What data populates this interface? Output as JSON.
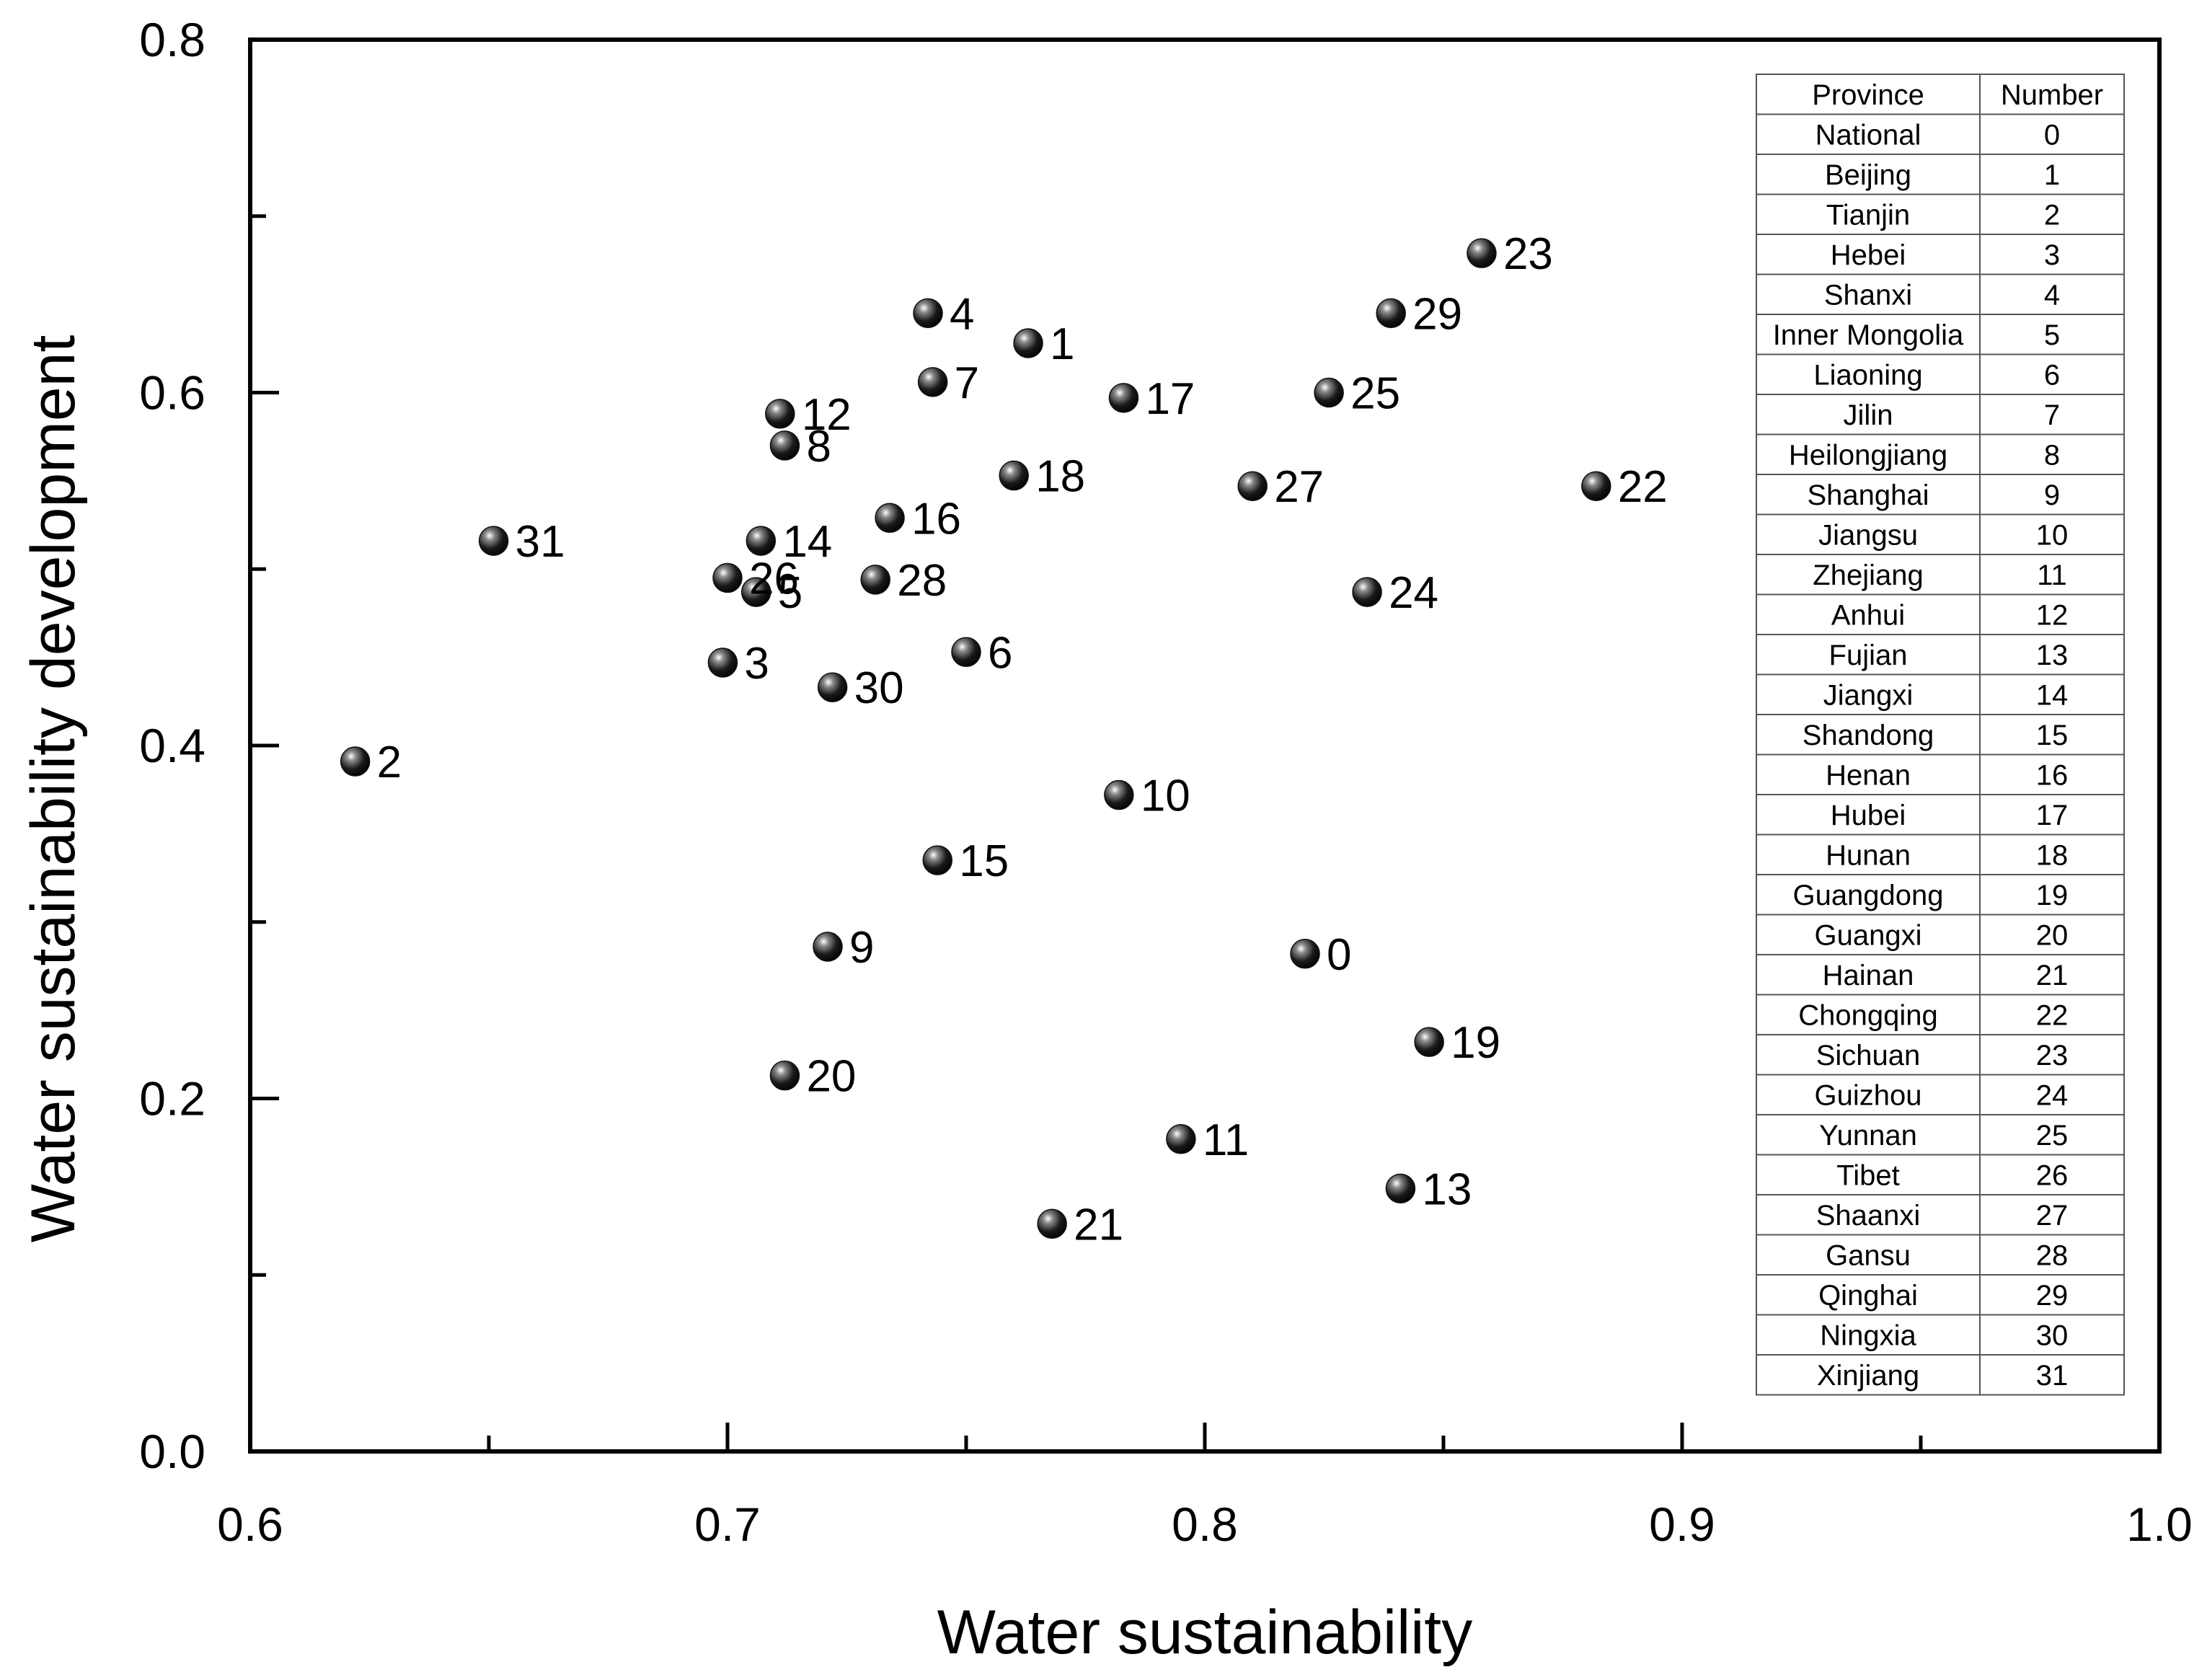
{
  "chart_data": {
    "type": "scatter",
    "title": "",
    "xlabel": "Water sustainability",
    "ylabel": "Water sustainability development",
    "xlim": [
      0.6,
      1.0
    ],
    "ylim": [
      0.0,
      0.8
    ],
    "x_major_ticks": [
      0.6,
      0.7,
      0.8,
      0.9,
      1.0
    ],
    "y_major_ticks": [
      0.0,
      0.2,
      0.4,
      0.6,
      0.8
    ],
    "x_tick_labels": [
      "0.6",
      "0.7",
      "0.8",
      "0.9",
      "1.0"
    ],
    "y_tick_labels": [
      "0.0",
      "0.2",
      "0.4",
      "0.6",
      "0.8"
    ],
    "grid": false,
    "marker_color": "#111111",
    "points": [
      {
        "label": "0",
        "x": 0.821,
        "y": 0.282
      },
      {
        "label": "1",
        "x": 0.763,
        "y": 0.628
      },
      {
        "label": "2",
        "x": 0.622,
        "y": 0.391
      },
      {
        "label": "3",
        "x": 0.699,
        "y": 0.447
      },
      {
        "label": "4",
        "x": 0.742,
        "y": 0.645
      },
      {
        "label": "5",
        "x": 0.706,
        "y": 0.487
      },
      {
        "label": "6",
        "x": 0.75,
        "y": 0.453
      },
      {
        "label": "7",
        "x": 0.743,
        "y": 0.606
      },
      {
        "label": "8",
        "x": 0.712,
        "y": 0.57
      },
      {
        "label": "9",
        "x": 0.721,
        "y": 0.286
      },
      {
        "label": "10",
        "x": 0.782,
        "y": 0.372
      },
      {
        "label": "11",
        "x": 0.795,
        "y": 0.177
      },
      {
        "label": "12",
        "x": 0.711,
        "y": 0.588
      },
      {
        "label": "13",
        "x": 0.841,
        "y": 0.149
      },
      {
        "label": "14",
        "x": 0.707,
        "y": 0.516
      },
      {
        "label": "15",
        "x": 0.744,
        "y": 0.335
      },
      {
        "label": "16",
        "x": 0.734,
        "y": 0.529
      },
      {
        "label": "17",
        "x": 0.783,
        "y": 0.597
      },
      {
        "label": "18",
        "x": 0.76,
        "y": 0.553
      },
      {
        "label": "19",
        "x": 0.847,
        "y": 0.232
      },
      {
        "label": "20",
        "x": 0.712,
        "y": 0.213
      },
      {
        "label": "21",
        "x": 0.768,
        "y": 0.129
      },
      {
        "label": "22",
        "x": 0.882,
        "y": 0.547
      },
      {
        "label": "23",
        "x": 0.858,
        "y": 0.679
      },
      {
        "label": "24",
        "x": 0.834,
        "y": 0.487
      },
      {
        "label": "25",
        "x": 0.826,
        "y": 0.6
      },
      {
        "label": "26",
        "x": 0.7,
        "y": 0.495
      },
      {
        "label": "27",
        "x": 0.81,
        "y": 0.547
      },
      {
        "label": "28",
        "x": 0.731,
        "y": 0.494
      },
      {
        "label": "29",
        "x": 0.839,
        "y": 0.645
      },
      {
        "label": "30",
        "x": 0.722,
        "y": 0.433
      },
      {
        "label": "31",
        "x": 0.651,
        "y": 0.516
      }
    ],
    "legend_table": {
      "position": "top-right",
      "headers": [
        "Province",
        "Number"
      ],
      "rows": [
        [
          "National",
          "0"
        ],
        [
          "Beijing",
          "1"
        ],
        [
          "Tianjin",
          "2"
        ],
        [
          "Hebei",
          "3"
        ],
        [
          "Shanxi",
          "4"
        ],
        [
          "Inner Mongolia",
          "5"
        ],
        [
          "Liaoning",
          "6"
        ],
        [
          "Jilin",
          "7"
        ],
        [
          "Heilongjiang",
          "8"
        ],
        [
          "Shanghai",
          "9"
        ],
        [
          "Jiangsu",
          "10"
        ],
        [
          "Zhejiang",
          "11"
        ],
        [
          "Anhui",
          "12"
        ],
        [
          "Fujian",
          "13"
        ],
        [
          "Jiangxi",
          "14"
        ],
        [
          "Shandong",
          "15"
        ],
        [
          "Henan",
          "16"
        ],
        [
          "Hubei",
          "17"
        ],
        [
          "Hunan",
          "18"
        ],
        [
          "Guangdong",
          "19"
        ],
        [
          "Guangxi",
          "20"
        ],
        [
          "Hainan",
          "21"
        ],
        [
          "Chongqing",
          "22"
        ],
        [
          "Sichuan",
          "23"
        ],
        [
          "Guizhou",
          "24"
        ],
        [
          "Yunnan",
          "25"
        ],
        [
          "Tibet",
          "26"
        ],
        [
          "Shaanxi",
          "27"
        ],
        [
          "Gansu",
          "28"
        ],
        [
          "Qinghai",
          "29"
        ],
        [
          "Ningxia",
          "30"
        ],
        [
          "Xinjiang",
          "31"
        ]
      ]
    }
  }
}
